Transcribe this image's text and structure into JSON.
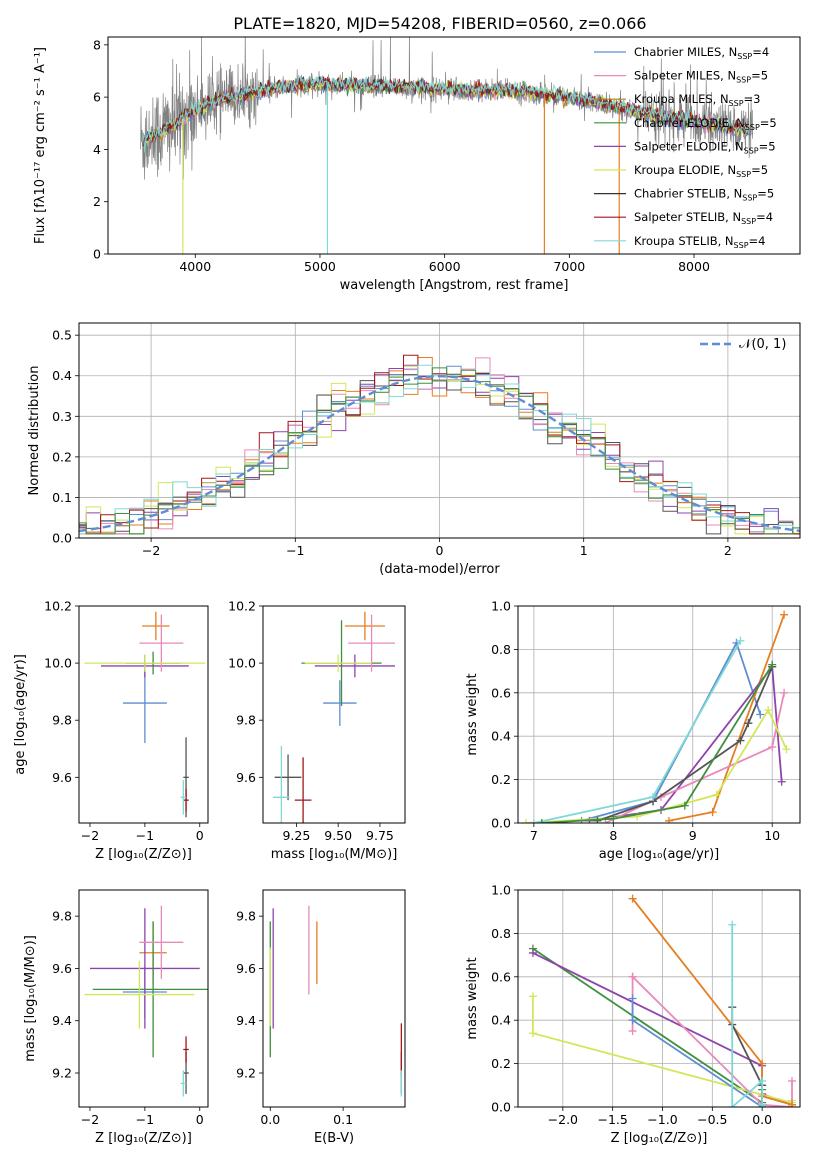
{
  "title": "PLATE=1820, MJD=54208, FIBERID=0560, z=0.066",
  "palette": [
    "#5f8dd3",
    "#e67e22",
    "#8e44ad",
    "#e88aba",
    "#d4e65a",
    "#555555",
    "#a01818",
    "#7fd8d8",
    "#3f8f3f"
  ],
  "chart_data": [
    {
      "id": "spectrum",
      "type": "line",
      "title": "PLATE=1820, MJD=54208, FIBERID=0560, z=0.066",
      "xlabel": "wavelength [Angstrom, rest frame]",
      "ylabel": "Flux [fλ10⁻¹⁷ erg cm⁻² s⁻¹ A⁻¹]",
      "xlim": [
        3300,
        8850
      ],
      "ylim": [
        0,
        8.3
      ],
      "xticks": [
        4000,
        5000,
        6000,
        7000,
        8000
      ],
      "yticks": [
        0,
        2,
        4,
        6,
        8
      ],
      "grid": false,
      "legend_loc": "top-right",
      "series": [
        {
          "name": "Chabrier MILES, N_SSP=4",
          "legend": [
            "Chabrier MILES, N",
            "SSP",
            "=4"
          ],
          "color": "#5f8dd3"
        },
        {
          "name": "Salpeter MILES, N_SSP=5",
          "legend": [
            "Salpeter MILES, N",
            "SSP",
            "=5"
          ],
          "color": "#e88aba"
        },
        {
          "name": "Kroupa MILES, N_SSP=3",
          "legend": [
            "Kroupa MILES, N",
            "SSP",
            "=3"
          ],
          "color": "#b08020"
        },
        {
          "name": "Chabrier ELODIE, N_SSP=5",
          "legend": [
            "Chabrier ELODIE, N",
            "SSP",
            "=5"
          ],
          "color": "#3f8f3f"
        },
        {
          "name": "Salpeter ELODIE, N_SSP=5",
          "legend": [
            "Salpeter ELODIE, N",
            "SSP",
            "=5"
          ],
          "color": "#8e44ad"
        },
        {
          "name": "Kroupa ELODIE, N_SSP=5",
          "legend": [
            "Kroupa ELODIE, N",
            "SSP",
            "=5"
          ],
          "color": "#d4e65a"
        },
        {
          "name": "Chabrier STELIB, N_SSP=5",
          "legend": [
            "Chabrier STELIB, N",
            "SSP",
            "=5"
          ],
          "color": "#333333"
        },
        {
          "name": "Salpeter STELIB, N_SSP=4",
          "legend": [
            "Salpeter STELIB, N",
            "SSP",
            "=4"
          ],
          "color": "#a01818"
        },
        {
          "name": "Kroupa STELIB, N_SSP=4",
          "legend": [
            "Kroupa STELIB, N",
            "SSP",
            "=4"
          ],
          "color": "#7fd8d8"
        }
      ],
      "continuum": [
        [
          3560,
          4.3
        ],
        [
          3700,
          4.6
        ],
        [
          3850,
          5.0
        ],
        [
          4000,
          5.5
        ],
        [
          4200,
          5.9
        ],
        [
          4400,
          6.1
        ],
        [
          4700,
          6.4
        ],
        [
          5000,
          6.5
        ],
        [
          5500,
          6.4
        ],
        [
          6000,
          6.3
        ],
        [
          6500,
          6.25
        ],
        [
          7000,
          6.0
        ],
        [
          7400,
          5.6
        ],
        [
          7800,
          5.2
        ],
        [
          8200,
          4.9
        ],
        [
          8470,
          4.7
        ]
      ],
      "spike_x": [
        3900,
        5060,
        6800,
        7400
      ]
    },
    {
      "id": "residuals",
      "type": "histogram",
      "xlabel": "(data-model)/error",
      "ylabel": "Normed distribution",
      "xlim": [
        -2.5,
        2.5
      ],
      "ylim": [
        0,
        0.53
      ],
      "xticks": [
        -2,
        -1,
        0,
        1,
        2
      ],
      "yticks": [
        0.0,
        0.1,
        0.2,
        0.3,
        0.4,
        0.5
      ],
      "grid": true,
      "legend_loc": "top-right",
      "legend_label": "𝒩(0, 1)",
      "reference": {
        "type": "gaussian",
        "mean": 0,
        "sigma": 1
      }
    },
    {
      "id": "age-vs-z",
      "type": "errorbar",
      "xlabel": "Z [log₁₀(Z/Z⊙)]",
      "ylabel": "age  [log₁₀(age/yr)]",
      "xlim": [
        -2.2,
        0.15
      ],
      "ylim": [
        9.44,
        10.2
      ],
      "xticks": [
        -2,
        -1,
        0
      ],
      "yticks": [
        9.6,
        9.8,
        10.0,
        10.2
      ],
      "points": [
        {
          "x": -1.0,
          "xerr": 0.4,
          "y": 9.86,
          "yerr": 0.14,
          "color": "#5f8dd3"
        },
        {
          "x": -0.8,
          "xerr": 0.25,
          "y": 10.13,
          "yerr": 0.05,
          "color": "#e67e22"
        },
        {
          "x": -0.85,
          "xerr": 0.5,
          "y": 10.0,
          "yerr": 0.04,
          "color": "#3f8f3f"
        },
        {
          "x": -1.0,
          "xerr": 0.8,
          "y": 9.99,
          "yerr": 0.04,
          "color": "#8e44ad"
        },
        {
          "x": -0.7,
          "xerr": 0.4,
          "y": 10.07,
          "yerr": 0.1,
          "color": "#e88aba"
        },
        {
          "x": -1.0,
          "xerr": 1.1,
          "y": 10.0,
          "yerr": 0.03,
          "color": "#d4e65a"
        },
        {
          "x": -0.25,
          "xerr": 0.05,
          "y": 9.6,
          "yerr": 0.14,
          "color": "#555555"
        },
        {
          "x": -0.25,
          "xerr": 0.05,
          "y": 9.52,
          "yerr": 0.04,
          "color": "#a01818"
        },
        {
          "x": -0.3,
          "xerr": 0.05,
          "y": 9.53,
          "yerr": 0.06,
          "color": "#7fd8d8"
        }
      ]
    },
    {
      "id": "age-vs-mass",
      "type": "errorbar",
      "xlabel": "mass [log₁₀(M/M⊙)]",
      "ylabel": "",
      "xlim": [
        9.05,
        9.9
      ],
      "ylim": [
        9.44,
        10.2
      ],
      "xticks": [
        9.25,
        9.5,
        9.75
      ],
      "yticks": [
        9.6,
        9.8,
        10.0,
        10.2
      ],
      "points": [
        {
          "x": 9.51,
          "xerr": 0.1,
          "y": 9.86,
          "yerr": 0.08,
          "color": "#5f8dd3"
        },
        {
          "x": 9.66,
          "xerr": 0.12,
          "y": 10.13,
          "yerr": 0.05,
          "color": "#e67e22"
        },
        {
          "x": 9.52,
          "xerr": 0.24,
          "y": 10.0,
          "yerr": 0.15,
          "color": "#3f8f3f"
        },
        {
          "x": 9.6,
          "xerr": 0.24,
          "y": 9.99,
          "yerr": 0.04,
          "color": "#8e44ad"
        },
        {
          "x": 9.7,
          "xerr": 0.14,
          "y": 10.07,
          "yerr": 0.1,
          "color": "#e88aba"
        },
        {
          "x": 9.5,
          "xerr": 0.2,
          "y": 10.0,
          "yerr": 0.03,
          "color": "#d4e65a"
        },
        {
          "x": 9.2,
          "xerr": 0.08,
          "y": 9.6,
          "yerr": 0.08,
          "color": "#555555"
        },
        {
          "x": 9.29,
          "xerr": 0.05,
          "y": 9.52,
          "yerr": 0.15,
          "color": "#a01818"
        },
        {
          "x": 9.16,
          "xerr": 0.05,
          "y": 9.53,
          "yerr": 0.18,
          "color": "#7fd8d8"
        }
      ]
    },
    {
      "id": "massweight-vs-age",
      "type": "line",
      "xlabel": "age  [log₁₀(age/yr)]",
      "ylabel": "mass weight",
      "xlim": [
        6.8,
        10.35
      ],
      "ylim": [
        0,
        1.0
      ],
      "xticks": [
        7,
        8,
        9,
        10
      ],
      "yticks": [
        0.0,
        0.2,
        0.4,
        0.6,
        0.8,
        1.0
      ],
      "grid": true,
      "series": [
        {
          "color": "#5f8dd3",
          "x": [
            7.6,
            8.5,
            9.55,
            9.85
          ],
          "y": [
            0.01,
            0.1,
            0.83,
            0.5
          ]
        },
        {
          "color": "#e67e22",
          "x": [
            8.7,
            9.25,
            10.15
          ],
          "y": [
            0.01,
            0.05,
            0.96
          ]
        },
        {
          "color": "#8e44ad",
          "x": [
            7.7,
            8.6,
            10.0,
            10.12
          ],
          "y": [
            0.01,
            0.06,
            0.72,
            0.19
          ]
        },
        {
          "color": "#e88aba",
          "x": [
            7.9,
            8.6,
            10.0,
            10.15
          ],
          "y": [
            0.0,
            0.12,
            0.35,
            0.6
          ]
        },
        {
          "color": "#d4e65a",
          "x": [
            6.9,
            8.3,
            9.3,
            9.95,
            10.18
          ],
          "y": [
            0.0,
            0.03,
            0.13,
            0.52,
            0.34
          ]
        },
        {
          "color": "#555555",
          "x": [
            7.8,
            8.5,
            9.6,
            9.7,
            10.0
          ],
          "y": [
            0.01,
            0.1,
            0.38,
            0.46,
            0.72
          ]
        },
        {
          "color": "#7fd8d8",
          "x": [
            7.0,
            8.5,
            9.6
          ],
          "y": [
            0.0,
            0.12,
            0.84
          ]
        },
        {
          "color": "#3f8f3f",
          "x": [
            7.1,
            8.0,
            8.9,
            10.0
          ],
          "y": [
            0.0,
            0.02,
            0.08,
            0.73
          ]
        }
      ]
    },
    {
      "id": "mass-vs-z",
      "type": "errorbar",
      "xlabel": "Z [log₁₀(Z/Z⊙)]",
      "ylabel": "mass [log₁₀(M/M⊙)]",
      "xlim": [
        -2.2,
        0.15
      ],
      "ylim": [
        9.07,
        9.9
      ],
      "xticks": [
        -2,
        -1,
        0
      ],
      "yticks": [
        9.2,
        9.4,
        9.6,
        9.8
      ],
      "points": [
        {
          "x": -1.0,
          "xerr": 0.4,
          "y": 9.51,
          "yerr": 0.1,
          "color": "#5f8dd3"
        },
        {
          "x": -0.85,
          "xerr": 0.25,
          "y": 9.66,
          "yerr": 0.12,
          "color": "#e67e22"
        },
        {
          "x": -0.85,
          "xerr": 1.1,
          "y": 9.52,
          "yerr": 0.26,
          "color": "#3f8f3f"
        },
        {
          "x": -1.0,
          "xerr": 1.0,
          "y": 9.6,
          "yerr": 0.23,
          "color": "#8e44ad"
        },
        {
          "x": -0.7,
          "xerr": 0.4,
          "y": 9.7,
          "yerr": 0.14,
          "color": "#e88aba"
        },
        {
          "x": -1.1,
          "xerr": 1.0,
          "y": 9.5,
          "yerr": 0.13,
          "color": "#d4e65a"
        },
        {
          "x": -0.25,
          "xerr": 0.05,
          "y": 9.2,
          "yerr": 0.08,
          "color": "#555555"
        },
        {
          "x": -0.25,
          "xerr": 0.05,
          "y": 9.29,
          "yerr": 0.05,
          "color": "#a01818"
        },
        {
          "x": -0.3,
          "xerr": 0.05,
          "y": 9.16,
          "yerr": 0.05,
          "color": "#7fd8d8"
        }
      ]
    },
    {
      "id": "mass-vs-ebv",
      "type": "errorbar",
      "xlabel": "E(B-V)",
      "ylabel": "",
      "xlim": [
        -0.01,
        0.185
      ],
      "ylim": [
        9.07,
        9.9
      ],
      "xticks": [
        0.0,
        0.1
      ],
      "yticks": [
        9.2,
        9.4,
        9.6,
        9.8
      ],
      "points": [
        {
          "x": 0.0,
          "xerr": 0,
          "y": 9.51,
          "yerr": 0.1,
          "color": "#5f8dd3"
        },
        {
          "x": 0.064,
          "xerr": 0,
          "y": 9.66,
          "yerr": 0.12,
          "color": "#e67e22"
        },
        {
          "x": 0.0,
          "xerr": 0,
          "y": 9.52,
          "yerr": 0.26,
          "color": "#3f8f3f"
        },
        {
          "x": 0.004,
          "xerr": 0,
          "y": 9.6,
          "yerr": 0.23,
          "color": "#8e44ad"
        },
        {
          "x": 0.053,
          "xerr": 0,
          "y": 9.67,
          "yerr": 0.17,
          "color": "#e88aba"
        },
        {
          "x": 0.0,
          "xerr": 0,
          "y": 9.53,
          "yerr": 0.15,
          "color": "#d4e65a"
        },
        {
          "x": 0.18,
          "xerr": 0,
          "y": 9.2,
          "yerr": 0.08,
          "color": "#555555"
        },
        {
          "x": 0.18,
          "xerr": 0,
          "y": 9.29,
          "yerr": 0.1,
          "color": "#a01818"
        },
        {
          "x": 0.18,
          "xerr": 0,
          "y": 9.16,
          "yerr": 0.05,
          "color": "#7fd8d8"
        }
      ]
    },
    {
      "id": "massweight-vs-z",
      "type": "line",
      "xlabel": "Z [log₁₀(Z/Z⊙)]",
      "ylabel": "mass weight",
      "xlim": [
        -2.45,
        0.38
      ],
      "ylim": [
        0,
        1.0
      ],
      "xticks": [
        -2.0,
        -1.5,
        -1.0,
        -0.5,
        0.0
      ],
      "xticklabels": [
        "−2.0",
        "−1.5",
        "−1.0",
        "−0.5",
        "0.0"
      ],
      "yticks": [
        0.0,
        0.2,
        0.4,
        0.6,
        0.8,
        1.0
      ],
      "grid": true,
      "series": [
        {
          "color": "#3f8f3f",
          "x": [
            -2.3,
            0.0,
            0.0,
            0.0
          ],
          "y": [
            0.73,
            0.02,
            0.08,
            0.0
          ]
        },
        {
          "color": "#8e44ad",
          "x": [
            -2.3,
            0.0,
            0.0,
            0.3
          ],
          "y": [
            0.71,
            0.19,
            0.06,
            0.01
          ]
        },
        {
          "color": "#d4e65a",
          "x": [
            -2.3,
            -2.3,
            0.3,
            0.3,
            0.3
          ],
          "y": [
            0.51,
            0.34,
            0.02,
            0.0,
            0.03
          ]
        },
        {
          "color": "#e88aba",
          "x": [
            -1.3,
            -1.3,
            -1.3,
            -0.0,
            0.3,
            0.3
          ],
          "y": [
            0.6,
            0.35,
            0.6,
            0.01,
            0.0,
            0.12
          ]
        },
        {
          "color": "#5f8dd3",
          "x": [
            -1.3,
            -1.3,
            0.0,
            0.0,
            0.0
          ],
          "y": [
            0.5,
            0.4,
            0.0,
            0.1,
            0.01
          ]
        },
        {
          "color": "#e67e22",
          "x": [
            -1.3,
            0.0,
            0.0,
            0.3
          ],
          "y": [
            0.96,
            0.2,
            0.05,
            0.01
          ]
        },
        {
          "color": "#555555",
          "x": [
            -0.3,
            -0.3,
            0.0,
            0.0
          ],
          "y": [
            0.46,
            0.38,
            0.1,
            0.0
          ]
        },
        {
          "color": "#7fd8d8",
          "x": [
            -0.3,
            -0.3,
            0.0,
            0.0,
            0.0
          ],
          "y": [
            0.84,
            0.0,
            0.12,
            0.0,
            0.01
          ]
        }
      ]
    }
  ]
}
